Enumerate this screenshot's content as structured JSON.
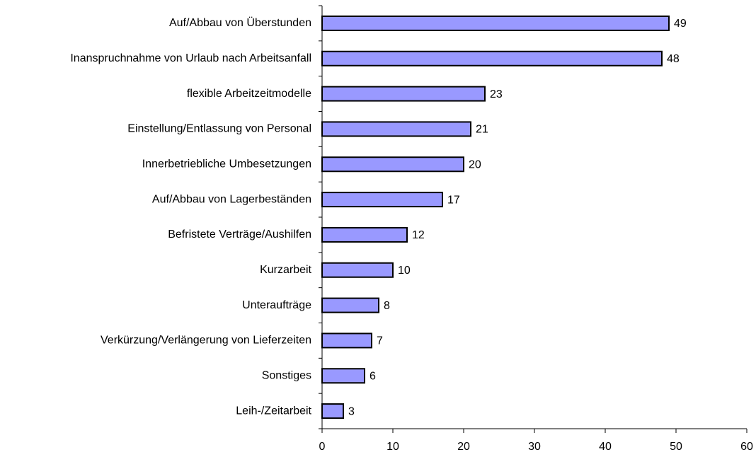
{
  "chart_data": {
    "type": "bar",
    "orientation": "horizontal",
    "categories": [
      "Auf/Abbau von Überstunden",
      "Inanspruchnahme von Urlaub nach Arbeitsanfall",
      "flexible Arbeitzeitmodelle",
      "Einstellung/Entlassung von Personal",
      "Innerbetriebliche Umbesetzungen",
      "Auf/Abbau von Lagerbeständen",
      "Befristete Verträge/Aushilfen",
      "Kurzarbeit",
      "Unteraufträge",
      "Verkürzung/Verlängerung von Lieferzeiten",
      "Sonstiges",
      "Leih-/Zeitarbeit"
    ],
    "values": [
      49,
      48,
      23,
      21,
      20,
      17,
      12,
      10,
      8,
      7,
      6,
      3
    ],
    "color": "#9999ff",
    "xlim": [
      0,
      60
    ],
    "xticks": [
      0,
      10,
      20,
      30,
      40,
      50,
      60
    ],
    "grid": false
  }
}
